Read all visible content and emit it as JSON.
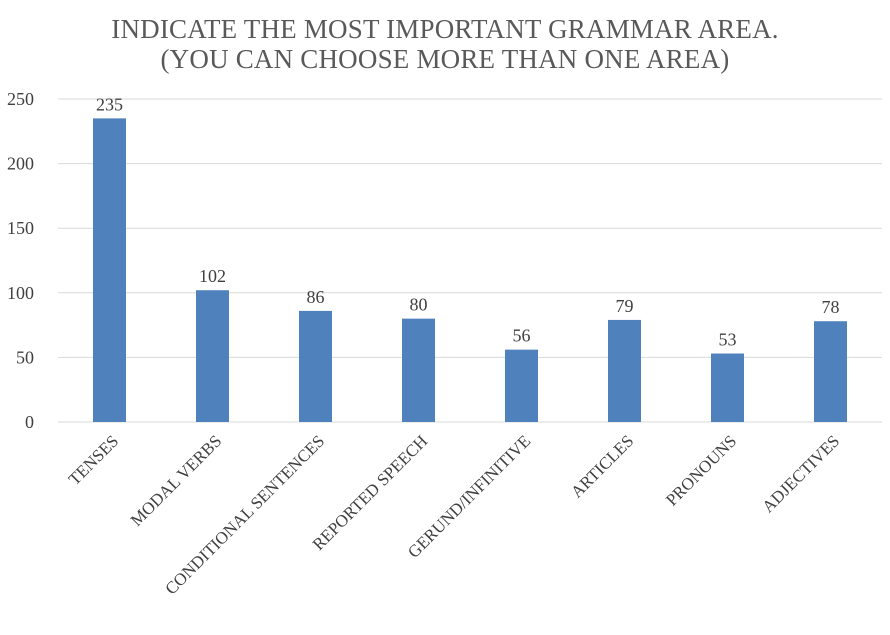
{
  "chart_data": {
    "type": "bar",
    "title_lines": [
      "INDICATE THE MOST IMPORTANT GRAMMAR AREA.",
      "(YOU CAN CHOOSE MORE THAN ONE AREA)"
    ],
    "categories": [
      "TENSES",
      "MODAL VERBS",
      "CONDITIONAL SENTENCES",
      "REPORTED SPEECH",
      "GERUND/INFINITIVE",
      "ARTICLES",
      "PRONOUNS",
      "ADJECTIVES"
    ],
    "values": [
      235,
      102,
      86,
      80,
      56,
      79,
      53,
      78
    ],
    "ylim": [
      0,
      250
    ],
    "yticks": [
      0,
      50,
      100,
      150,
      200,
      250
    ],
    "grid": true,
    "legend": "none",
    "colors": {
      "bar": "#4f81bd",
      "grid": "#d9d9d9",
      "text": "#404040",
      "title": "#595959"
    }
  }
}
